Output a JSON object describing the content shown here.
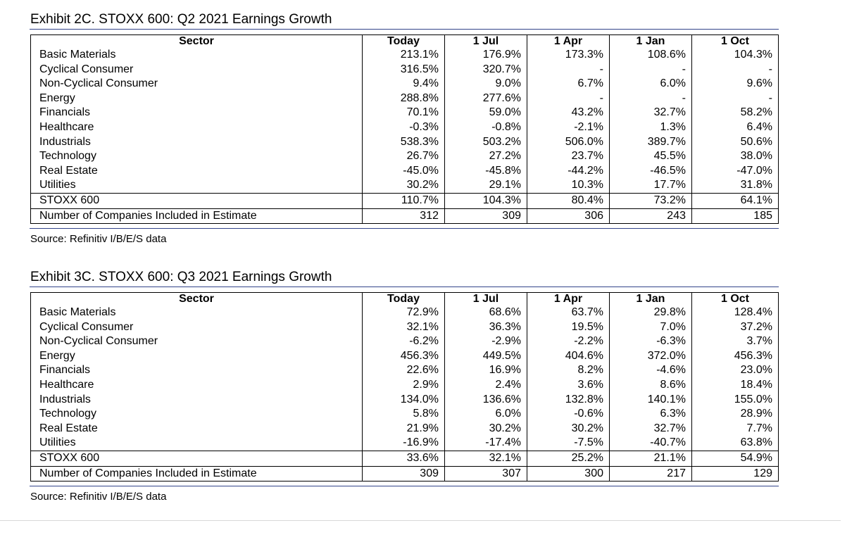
{
  "exhibits": [
    {
      "title": "Exhibit 2C.  STOXX 600: Q2 2021 Earnings Growth",
      "headers": [
        "Sector",
        "Today",
        "1 Jul",
        "1 Apr",
        "1 Jan",
        "1 Oct"
      ],
      "rows": [
        [
          "Basic Materials",
          "213.1%",
          "176.9%",
          "173.3%",
          "108.6%",
          "104.3%"
        ],
        [
          "Cyclical Consumer",
          "316.5%",
          "320.7%",
          "-",
          "-",
          "-"
        ],
        [
          "Non-Cyclical Consumer",
          "9.4%",
          "9.0%",
          "6.7%",
          "6.0%",
          "9.6%"
        ],
        [
          "Energy",
          "288.8%",
          "277.6%",
          "-",
          "-",
          "-"
        ],
        [
          "Financials",
          "70.1%",
          "59.0%",
          "43.2%",
          "32.7%",
          "58.2%"
        ],
        [
          "Healthcare",
          "-0.3%",
          "-0.8%",
          "-2.1%",
          "1.3%",
          "6.4%"
        ],
        [
          "Industrials",
          "538.3%",
          "503.2%",
          "506.0%",
          "389.7%",
          "50.6%"
        ],
        [
          "Technology",
          "26.7%",
          "27.2%",
          "23.7%",
          "45.5%",
          "38.0%"
        ],
        [
          "Real Estate",
          "-45.0%",
          "-45.8%",
          "-44.2%",
          "-46.5%",
          "-47.0%"
        ],
        [
          "Utilities",
          "30.2%",
          "29.1%",
          "10.3%",
          "17.7%",
          "31.8%"
        ],
        [
          "STOXX 600",
          "110.7%",
          "104.3%",
          "80.4%",
          "73.2%",
          "64.1%"
        ],
        [
          "Number of Companies Included in Estimate",
          "312",
          "309",
          "306",
          "243",
          "185"
        ]
      ],
      "source": "Source: Refinitiv I/B/E/S data"
    },
    {
      "title": "Exhibit 3C.  STOXX 600: Q3 2021 Earnings Growth",
      "headers": [
        "Sector",
        "Today",
        "1 Jul",
        "1 Apr",
        "1 Jan",
        "1 Oct"
      ],
      "rows": [
        [
          "Basic Materials",
          "72.9%",
          "68.6%",
          "63.7%",
          "29.8%",
          "128.4%"
        ],
        [
          "Cyclical Consumer",
          "32.1%",
          "36.3%",
          "19.5%",
          "7.0%",
          "37.2%"
        ],
        [
          "Non-Cyclical Consumer",
          "-6.2%",
          "-2.9%",
          "-2.2%",
          "-6.3%",
          "3.7%"
        ],
        [
          "Energy",
          "456.3%",
          "449.5%",
          "404.6%",
          "372.0%",
          "456.3%"
        ],
        [
          "Financials",
          "22.6%",
          "16.9%",
          "8.2%",
          "-4.6%",
          "23.0%"
        ],
        [
          "Healthcare",
          "2.9%",
          "2.4%",
          "3.6%",
          "8.6%",
          "18.4%"
        ],
        [
          "Industrials",
          "134.0%",
          "136.6%",
          "132.8%",
          "140.1%",
          "155.0%"
        ],
        [
          "Technology",
          "5.8%",
          "6.0%",
          "-0.6%",
          "6.3%",
          "28.9%"
        ],
        [
          "Real Estate",
          "21.9%",
          "30.2%",
          "30.2%",
          "32.7%",
          "7.7%"
        ],
        [
          "Utilities",
          "-16.9%",
          "-17.4%",
          "-7.5%",
          "-40.7%",
          "63.8%"
        ],
        [
          "STOXX 600",
          "33.6%",
          "32.1%",
          "25.2%",
          "21.1%",
          "54.9%"
        ],
        [
          "Number of Companies Included in Estimate",
          "309",
          "307",
          "300",
          "217",
          "129"
        ]
      ],
      "source": "Source: Refinitiv I/B/E/S data"
    }
  ]
}
